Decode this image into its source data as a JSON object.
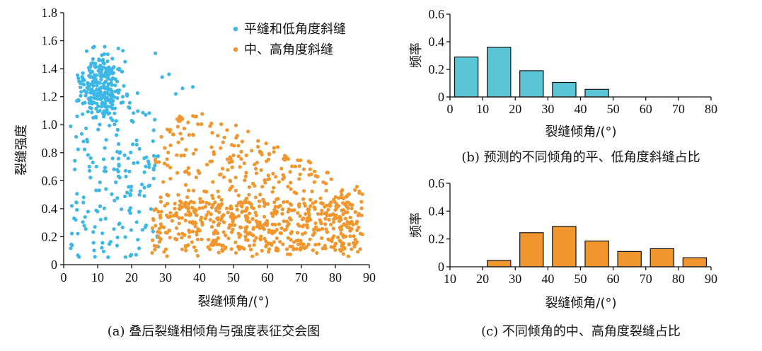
{
  "chart_data": [
    {
      "id": "a",
      "type": "scatter",
      "caption": "(a) 叠后裂缝相倾角与强度表征交会图",
      "xlabel": "裂缝倾角/(°)",
      "ylabel": "裂缝强度",
      "xlim": [
        0,
        90
      ],
      "ylim": [
        0,
        1.8
      ],
      "xticks": [
        "0",
        "10",
        "20",
        "30",
        "40",
        "50",
        "60",
        "70",
        "80",
        "90"
      ],
      "yticks": [
        "0",
        "0.2",
        "0.4",
        "0.6",
        "0.8",
        "1.0",
        "1.2",
        "1.4",
        "1.6",
        "1.8"
      ],
      "legend_position": "top-right",
      "series": [
        {
          "name": "平缝和低角度斜缝",
          "color": "#3db8e6",
          "x_range": [
            1,
            30
          ],
          "y_range": [
            0.03,
            1.65
          ],
          "approx_count": 450
        },
        {
          "name": "中、高角度斜缝",
          "color": "#f0962d",
          "x_range": [
            25,
            89
          ],
          "y_range": [
            0.03,
            1.08
          ],
          "approx_count": 800
        }
      ]
    },
    {
      "id": "b",
      "type": "bar",
      "caption": "(b) 预测的不同倾角的平、低角度斜缝占比",
      "xlabel": "裂缝倾角/(°)",
      "ylabel": "频率",
      "color": "#5bc5d8",
      "xlim": [
        0,
        80
      ],
      "ylim": [
        0,
        0.6
      ],
      "xticks": [
        "0",
        "10",
        "20",
        "30",
        "40",
        "50",
        "60",
        "70",
        "80"
      ],
      "yticks": [
        "0",
        "0.2",
        "0.4",
        "0.6"
      ],
      "bin_centers": [
        5,
        15,
        25,
        35,
        45
      ],
      "values": [
        0.29,
        0.36,
        0.19,
        0.105,
        0.055
      ]
    },
    {
      "id": "c",
      "type": "bar",
      "caption": "(c) 不同倾角的中、高角度裂缝占比",
      "xlabel": "裂缝倾角/(°)",
      "ylabel": "频率",
      "color": "#f0962d",
      "xlim": [
        10,
        90
      ],
      "ylim": [
        0,
        0.6
      ],
      "xticks": [
        "10",
        "20",
        "30",
        "40",
        "50",
        "60",
        "70",
        "80",
        "90"
      ],
      "yticks": [
        "0",
        "0.2",
        "0.4",
        "0.6"
      ],
      "bin_centers": [
        25,
        35,
        45,
        55,
        65,
        75,
        85
      ],
      "values": [
        0.045,
        0.245,
        0.29,
        0.185,
        0.11,
        0.13,
        0.065
      ]
    }
  ]
}
